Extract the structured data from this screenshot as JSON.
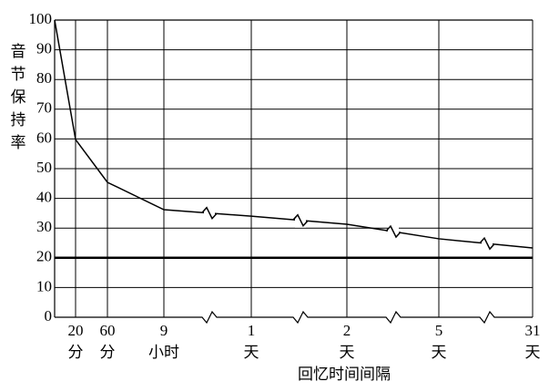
{
  "chart_data": {
    "type": "line",
    "y_label": "音节保持率",
    "x_label": "回忆时间间隔",
    "categories": [
      null,
      "20",
      "60",
      "9",
      "1",
      "2",
      "5",
      "31"
    ],
    "units": [
      null,
      "分",
      "分",
      "小时",
      "天",
      "天",
      "天",
      "天"
    ],
    "values": [
      100,
      59.8,
      45.4,
      36.2,
      34,
      31.3,
      26.4,
      23.3
    ],
    "color": "#000000",
    "reference_line": 20,
    "ylim": [
      0,
      100
    ],
    "yticks": [
      0,
      10,
      20,
      30,
      40,
      50,
      60,
      70,
      80,
      90,
      100
    ],
    "grid": true
  }
}
